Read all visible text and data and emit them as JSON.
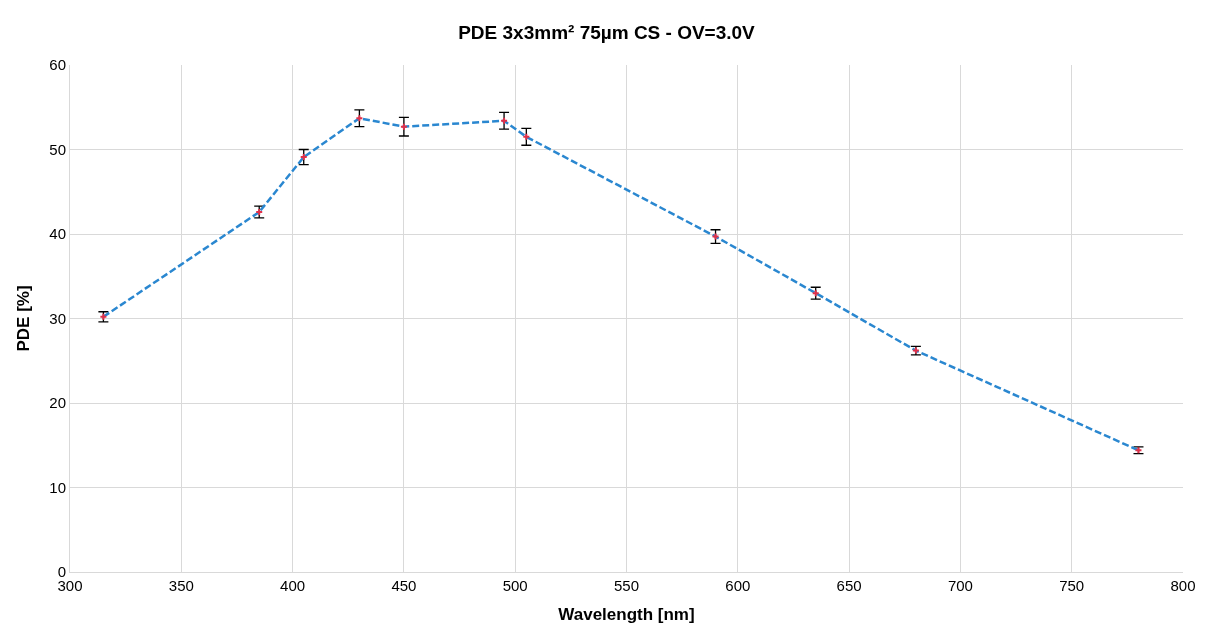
{
  "chart_data": {
    "type": "line",
    "title": "PDE 3x3mm² 75µm CS - OV=3.0V",
    "xlabel": "Wavelength [nm]",
    "ylabel": "PDE [%]",
    "x": [
      315,
      385,
      405,
      430,
      450,
      495,
      505,
      590,
      635,
      680,
      780
    ],
    "series": [
      {
        "color": "#2a87d0",
        "colors": [
          "#e0304a",
          "#e0304a",
          "#e0304a",
          "#e0304a",
          "#e0304a",
          "#e0304a",
          "#e0304a",
          "#e0304a",
          "#e0304a",
          "#e0304a",
          "#e0304a"
        ],
        "values": [
          30.2,
          42.6,
          49.1,
          53.7,
          52.7,
          53.4,
          51.5,
          39.7,
          33.0,
          26.2,
          14.4
        ],
        "errors": [
          0.6,
          0.7,
          0.9,
          1.0,
          1.1,
          1.0,
          1.0,
          0.8,
          0.7,
          0.5,
          0.4
        ]
      }
    ],
    "xlim": [
      300,
      800
    ],
    "xticks": [
      300,
      350,
      400,
      450,
      500,
      550,
      600,
      650,
      700,
      750,
      800
    ],
    "ylim": [
      0,
      60
    ],
    "yticks": [
      0,
      10,
      20,
      30,
      40,
      50,
      60
    ],
    "grid": true,
    "marker": "cross",
    "line_style": "dashed"
  }
}
